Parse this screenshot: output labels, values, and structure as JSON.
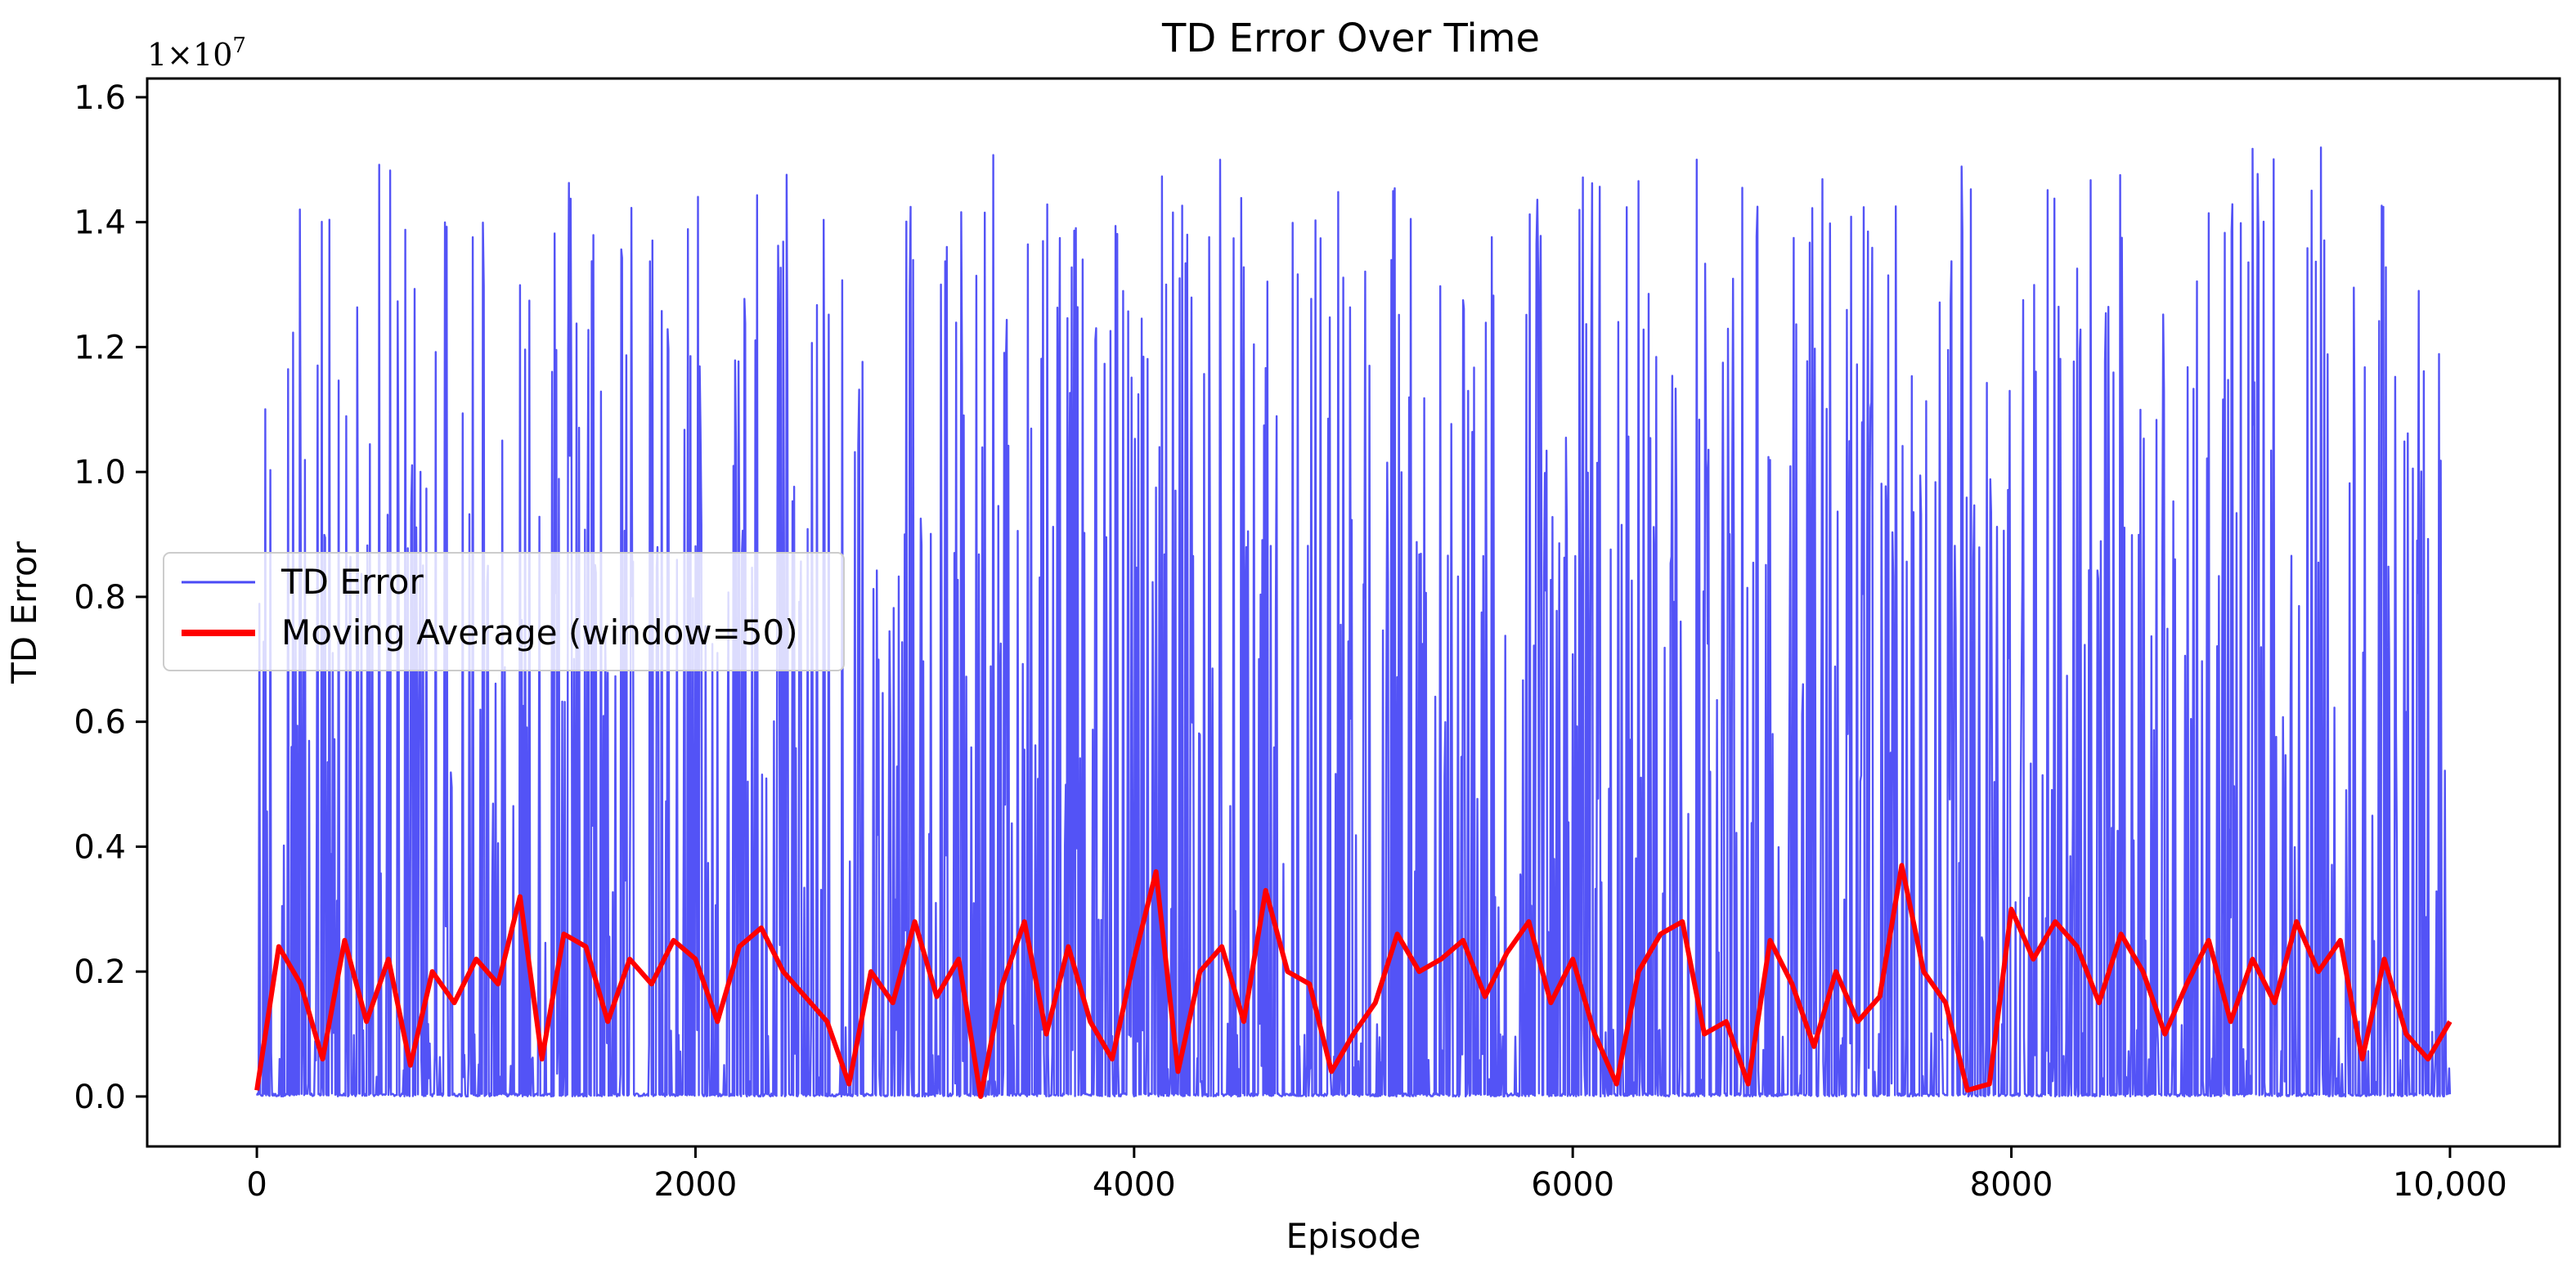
{
  "chart_data": {
    "type": "line",
    "title": "TD Error Over Time",
    "xlabel": "Episode",
    "ylabel": "TD Error",
    "y_multiplier": "1×10",
    "y_multiplier_exponent": "7",
    "xlim": [
      -500,
      10500
    ],
    "ylim": [
      -0.08,
      1.63
    ],
    "x_ticks": [
      0,
      2000,
      4000,
      6000,
      8000,
      10000
    ],
    "x_tick_labels": [
      "0",
      "2000",
      "4000",
      "6000",
      "8000",
      "10,000"
    ],
    "y_ticks": [
      0.0,
      0.2,
      0.4,
      0.6,
      0.8,
      1.0,
      1.2,
      1.4,
      1.6
    ],
    "y_tick_labels": [
      "0.0",
      "0.2",
      "0.4",
      "0.6",
      "0.8",
      "1.0",
      "1.2",
      "1.4",
      "1.6"
    ],
    "grid": false,
    "legend_position": "center-left",
    "series": [
      {
        "name": "TD Error",
        "color": "#4a4af5",
        "style": "thin line",
        "x": [
          0,
          250,
          500,
          750,
          1000,
          1250,
          1500,
          1750,
          2000,
          2250,
          2500,
          2750,
          3000,
          3250,
          3500,
          3750,
          4000,
          4250,
          4500,
          4750,
          5000,
          5250,
          5500,
          5750,
          6000,
          6250,
          6500,
          6750,
          7000,
          7250,
          7500,
          7750,
          8000,
          8250,
          8500,
          8750,
          9000,
          9250,
          9500,
          9750,
          10000
        ],
        "peak_values": [
          1.44,
          1.47,
          1.5,
          1.49,
          1.53,
          1.52,
          1.52,
          1.5,
          1.49,
          1.5,
          1.52,
          1.51,
          1.51,
          1.5,
          1.54,
          1.48,
          1.48,
          1.52,
          1.51,
          1.49,
          1.52,
          1.5,
          1.44,
          1.46,
          1.5,
          1.5,
          1.52,
          1.51,
          1.46,
          1.51,
          1.51,
          1.51,
          1.5,
          1.52,
          1.54,
          1.48,
          1.52,
          1.52,
          1.52,
          1.41,
          1.17
        ]
      },
      {
        "name": "Moving Average (window=50)",
        "color": "#ff0000",
        "style": "thick line",
        "x": [
          0,
          100,
          200,
          300,
          400,
          500,
          600,
          700,
          800,
          900,
          1000,
          1100,
          1200,
          1300,
          1400,
          1500,
          1600,
          1700,
          1800,
          1900,
          2000,
          2100,
          2200,
          2300,
          2400,
          2500,
          2600,
          2700,
          2800,
          2900,
          3000,
          3100,
          3200,
          3300,
          3400,
          3500,
          3600,
          3700,
          3800,
          3900,
          4000,
          4100,
          4200,
          4300,
          4400,
          4500,
          4600,
          4700,
          4800,
          4900,
          5000,
          5100,
          5200,
          5300,
          5400,
          5500,
          5600,
          5700,
          5800,
          5900,
          6000,
          6100,
          6200,
          6300,
          6400,
          6500,
          6600,
          6700,
          6800,
          6900,
          7000,
          7100,
          7200,
          7300,
          7400,
          7500,
          7600,
          7700,
          7800,
          7900,
          8000,
          8100,
          8200,
          8300,
          8400,
          8500,
          8600,
          8700,
          8800,
          8900,
          9000,
          9100,
          9200,
          9300,
          9400,
          9500,
          9600,
          9700,
          9800,
          9900,
          10000
        ],
        "values": [
          0.01,
          0.24,
          0.18,
          0.06,
          0.25,
          0.12,
          0.22,
          0.05,
          0.2,
          0.15,
          0.22,
          0.18,
          0.32,
          0.06,
          0.26,
          0.24,
          0.12,
          0.22,
          0.18,
          0.25,
          0.22,
          0.12,
          0.24,
          0.27,
          0.2,
          0.16,
          0.12,
          0.02,
          0.2,
          0.15,
          0.28,
          0.16,
          0.22,
          0.0,
          0.18,
          0.28,
          0.1,
          0.24,
          0.12,
          0.06,
          0.22,
          0.36,
          0.04,
          0.2,
          0.24,
          0.12,
          0.33,
          0.2,
          0.18,
          0.04,
          0.1,
          0.15,
          0.26,
          0.2,
          0.22,
          0.25,
          0.16,
          0.23,
          0.28,
          0.15,
          0.22,
          0.1,
          0.02,
          0.2,
          0.26,
          0.28,
          0.1,
          0.12,
          0.02,
          0.25,
          0.18,
          0.08,
          0.2,
          0.12,
          0.16,
          0.37,
          0.2,
          0.15,
          0.01,
          0.02,
          0.3,
          0.22,
          0.28,
          0.24,
          0.15,
          0.26,
          0.2,
          0.1,
          0.18,
          0.25,
          0.12,
          0.22,
          0.15,
          0.28,
          0.2,
          0.25,
          0.06,
          0.22,
          0.1,
          0.06,
          0.12
        ]
      }
    ]
  }
}
